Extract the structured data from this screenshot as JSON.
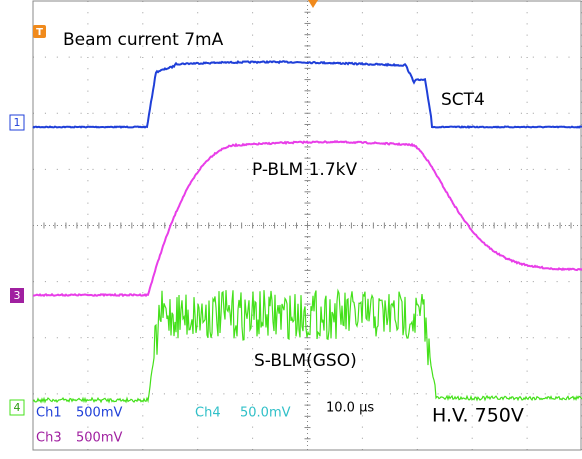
{
  "labels": {
    "beam": "Beam current 7mA",
    "sct4": "SCT4",
    "pblm": "P-BLM 1.7kV",
    "sblm": "S-BLM(GSO)",
    "hv": "H.V. 750V"
  },
  "markers": {
    "trigger": "T",
    "ch1": "1",
    "ch3": "3",
    "ch4": "4"
  },
  "readout": {
    "ch1": "Ch1",
    "ch1_scale": "500mV",
    "ch4": "Ch4",
    "ch4_scale": "50.0mV",
    "timebase": "10.0 µs",
    "ch3": "Ch3",
    "ch3_scale": "500mV"
  }
}
